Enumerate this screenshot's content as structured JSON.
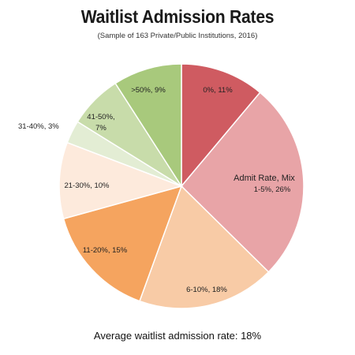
{
  "chart_data": {
    "type": "pie",
    "title": "Waitlist Admission Rates",
    "subtitle": "(Sample of 163 Private/Public Institutions, 2016)",
    "series_label": "Admit Rate, Mix",
    "slices": [
      {
        "label": "0%",
        "value": 11,
        "color": "#cf5b61",
        "text": "0%, 11%"
      },
      {
        "label": "1-5%",
        "value": 26,
        "color": "#e8a4a7",
        "text": "1-5%, 26%"
      },
      {
        "label": "6-10%",
        "value": 18,
        "color": "#f8cba6",
        "text": "6-10%, 18%"
      },
      {
        "label": "11-20%",
        "value": 15,
        "color": "#f5a45f",
        "text": "11-20%, 15%"
      },
      {
        "label": "21-30%",
        "value": 10,
        "color": "#fdeadc",
        "text": "21-30%, 10%"
      },
      {
        "label": "31-40%",
        "value": 3,
        "color": "#e3edd4",
        "text": "31-40%, 3%"
      },
      {
        "label": "41-50%",
        "value": 7,
        "color": "#c8dcaa",
        "text": "41-50%, 7%"
      },
      {
        "label": ">50%",
        "value": 9,
        "color": "#a8c97c",
        "text": ">50%, 9%"
      }
    ],
    "footer": "Average waitlist admission rate: 18%"
  }
}
